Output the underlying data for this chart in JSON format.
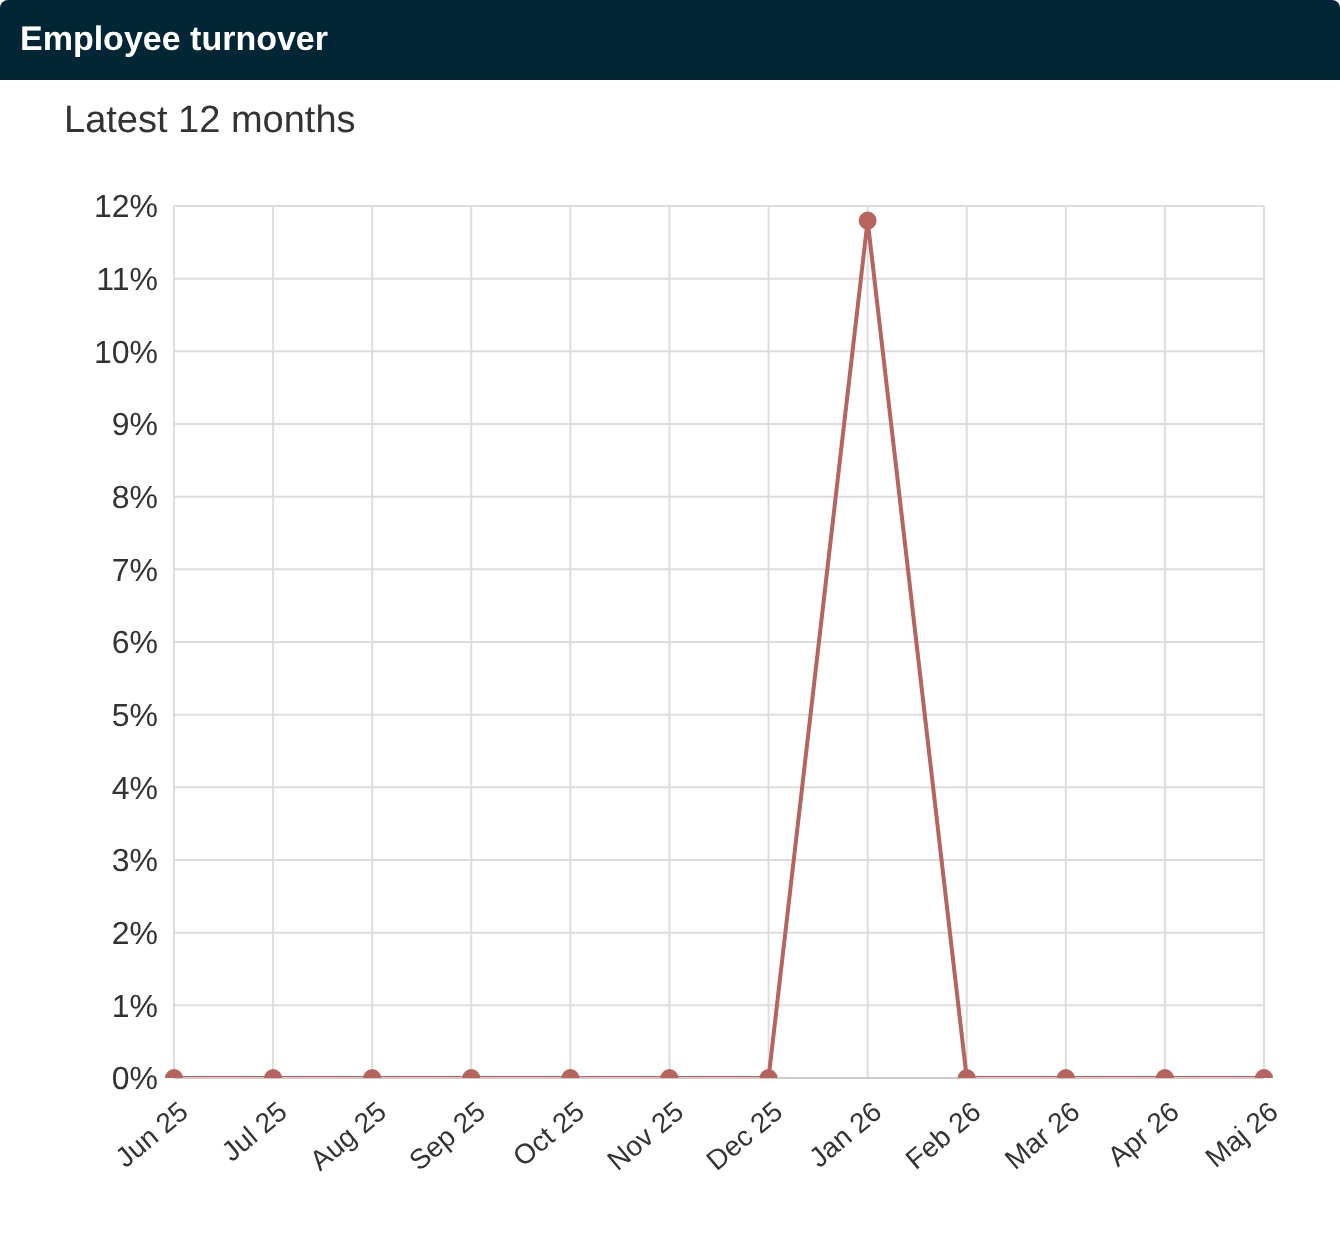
{
  "chart_data": {
    "type": "line",
    "title": "Employee turnover",
    "subtitle": "Latest 12 months",
    "categories": [
      "Jun 25",
      "Jul 25",
      "Aug 25",
      "Sep 25",
      "Oct 25",
      "Nov 25",
      "Dec 25",
      "Jan 26",
      "Feb 26",
      "Mar 26",
      "Apr 26",
      "Maj 26"
    ],
    "series": [
      {
        "color": "#b5645e",
        "values": [
          0,
          0,
          0,
          0,
          0,
          0,
          0,
          11.8,
          0,
          0,
          0,
          0
        ]
      }
    ],
    "ylim": [
      0,
      12
    ],
    "yticks": [
      {
        "value": 0,
        "label": "0%"
      },
      {
        "value": 1,
        "label": "1%"
      },
      {
        "value": 2,
        "label": "2%"
      },
      {
        "value": 3,
        "label": "3%"
      },
      {
        "value": 4,
        "label": "4%"
      },
      {
        "value": 5,
        "label": "5%"
      },
      {
        "value": 6,
        "label": "6%"
      },
      {
        "value": 7,
        "label": "7%"
      },
      {
        "value": 8,
        "label": "8%"
      },
      {
        "value": 9,
        "label": "9%"
      },
      {
        "value": 10,
        "label": "10%"
      },
      {
        "value": 11,
        "label": "11%"
      },
      {
        "value": 12,
        "label": "12%"
      }
    ],
    "grid": true,
    "marker": "circle",
    "line_style": "solid"
  }
}
